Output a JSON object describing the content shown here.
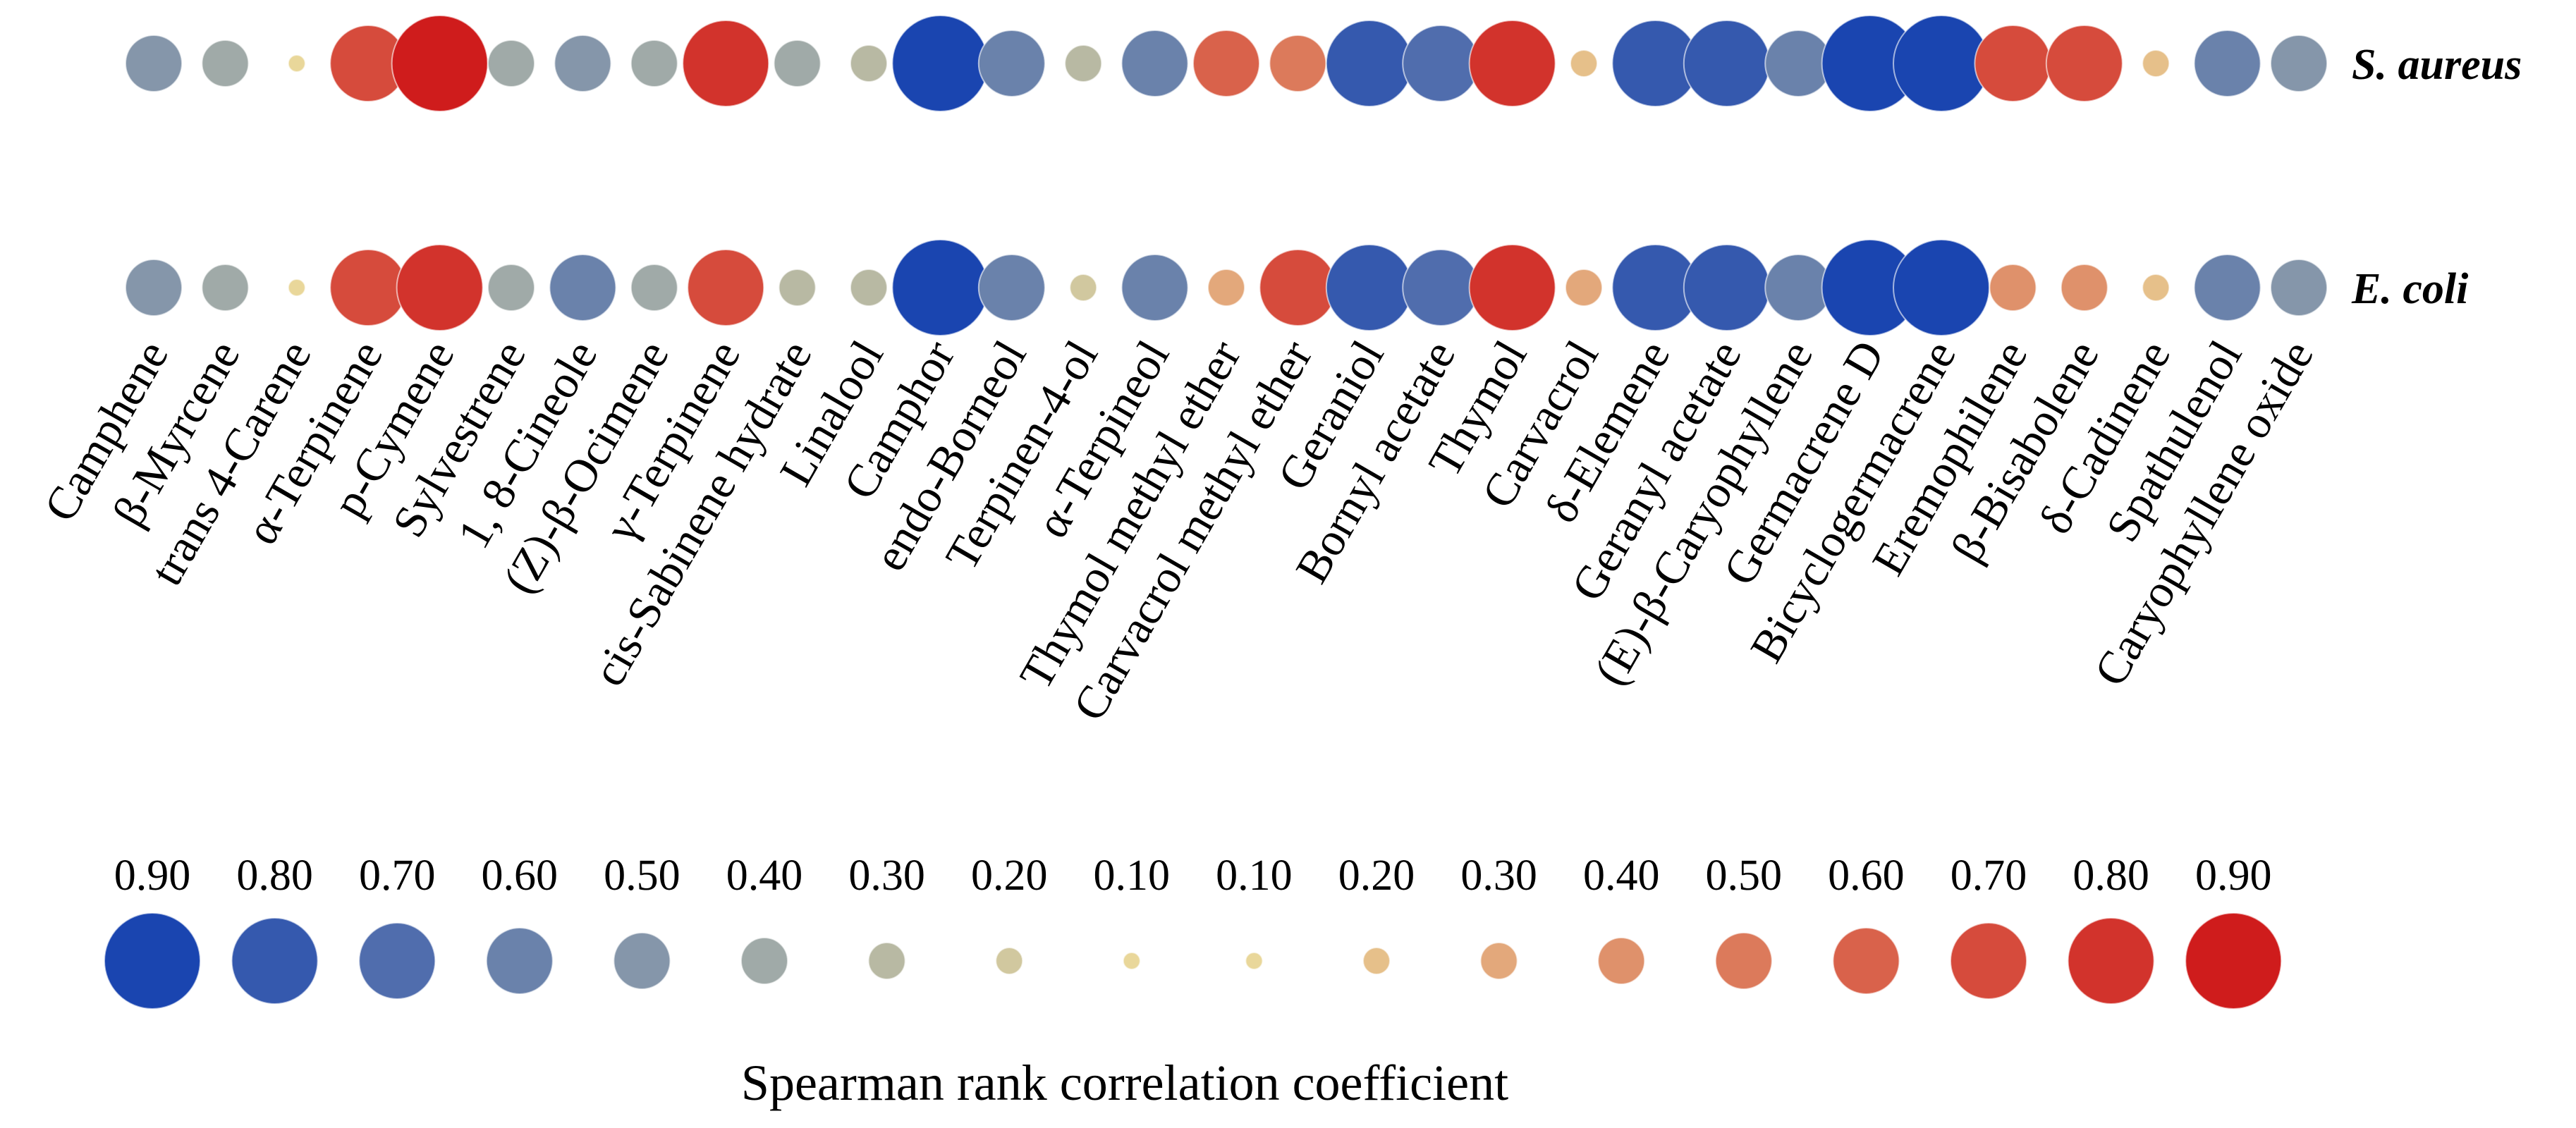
{
  "chart_data": {
    "type": "bubble-matrix",
    "title": "",
    "legend_title": "Spearman rank correlation coefficient",
    "rows": [
      "S. aureus",
      "E. coli"
    ],
    "compounds": [
      "Camphene",
      "β-Myrcene",
      "trans 4-Carene",
      "α-Terpinene",
      "p-Cymene",
      "Sylvestrene",
      "1, 8-Cineole",
      "(Z)-β-Ocimene",
      "γ-Terpinene",
      "cis-Sabinene hydrate",
      "Linalool",
      "Camphor",
      "endo-Borneol",
      "Terpinen-4-ol",
      "α-Terpineol",
      "Thymol methyl ether",
      "Carvacrol methyl ether",
      "Geraniol",
      "Bornyl acetate",
      "Thymol",
      "Carvacrol",
      "δ-Elemene",
      "Geranyl acetate",
      "(E)-β-Caryophyllene",
      "Germacrene D",
      "Bicyclogermacrene",
      "Eremophilene",
      "β-Bisabolene",
      "δ-Cadinene",
      "Spathulenol",
      "Caryophyllene oxide"
    ],
    "series": [
      {
        "name": "S. aureus",
        "values": [
          -0.5,
          -0.4,
          0.1,
          0.7,
          0.9,
          -0.4,
          -0.5,
          -0.4,
          0.8,
          -0.4,
          -0.3,
          -0.9,
          -0.6,
          -0.3,
          -0.6,
          0.6,
          0.5,
          -0.8,
          -0.7,
          0.8,
          0.2,
          -0.8,
          -0.8,
          -0.6,
          -0.9,
          -0.9,
          0.7,
          0.7,
          0.2,
          -0.6,
          -0.5
        ]
      },
      {
        "name": "E. coli",
        "values": [
          -0.5,
          -0.4,
          -0.1,
          0.7,
          0.8,
          -0.4,
          -0.6,
          -0.4,
          0.7,
          -0.3,
          -0.3,
          -0.9,
          -0.6,
          -0.2,
          -0.6,
          0.3,
          0.7,
          -0.8,
          -0.7,
          0.8,
          0.3,
          -0.8,
          -0.8,
          -0.6,
          -0.9,
          -0.9,
          0.4,
          0.4,
          0.2,
          -0.6,
          -0.5
        ]
      }
    ],
    "legend": {
      "tick_labels": [
        "0.90",
        "0.80",
        "0.70",
        "0.60",
        "0.50",
        "0.40",
        "0.30",
        "0.20",
        "0.10",
        "0.10",
        "0.20",
        "0.30",
        "0.40",
        "0.50",
        "0.60",
        "0.70",
        "0.80",
        "0.90"
      ],
      "values": [
        -0.9,
        -0.8,
        -0.7,
        -0.6,
        -0.5,
        -0.4,
        -0.3,
        -0.2,
        -0.1,
        0.1,
        0.2,
        0.3,
        0.4,
        0.5,
        0.6,
        0.7,
        0.8,
        0.9
      ]
    },
    "color_scale": {
      "neg_strong": "#1a45b0",
      "neutral": "#e9d79a",
      "pos_strong": "#cf1c1c"
    }
  }
}
